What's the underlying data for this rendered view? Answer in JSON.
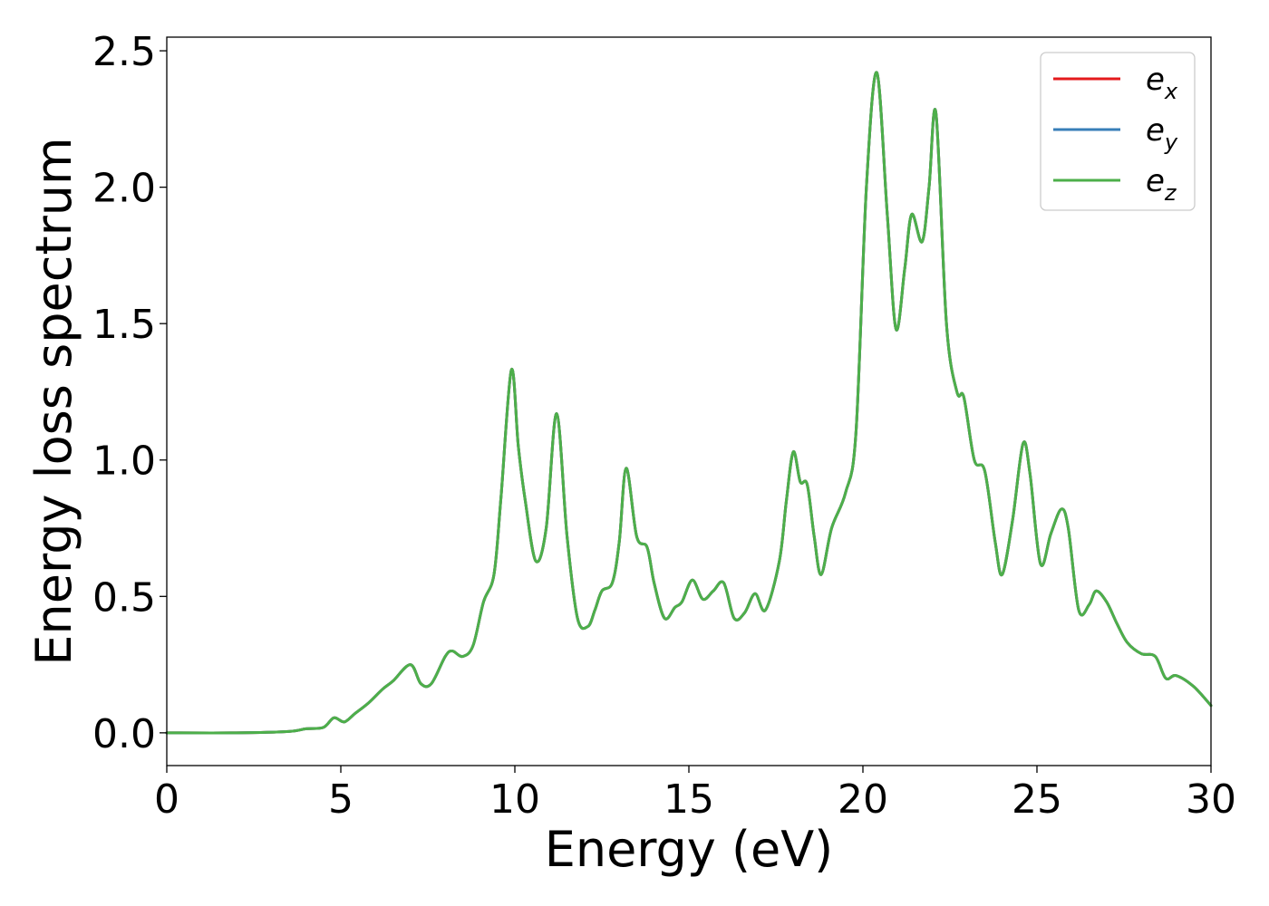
{
  "chart_data": {
    "type": "line",
    "title": "",
    "xlabel": "Energy (eV)",
    "ylabel": "Energy loss spectrum",
    "xlim": [
      0,
      30
    ],
    "ylim": [
      -0.12,
      2.55
    ],
    "xticks": [
      0,
      5,
      10,
      15,
      20,
      25,
      30
    ],
    "yticks": [
      0.0,
      0.5,
      1.0,
      1.5,
      2.0,
      2.5
    ],
    "xtick_labels": [
      "0",
      "5",
      "10",
      "15",
      "20",
      "25",
      "30"
    ],
    "ytick_labels": [
      "0.0",
      "0.5",
      "1.0",
      "1.5",
      "2.0",
      "2.5"
    ],
    "grid": false,
    "legend_position": "top-right",
    "colors": {
      "ex": "#e41a1c",
      "ey": "#377eb8",
      "ez": "#4daf4a"
    },
    "series": [
      {
        "name": "e_x",
        "legend_base": "e",
        "legend_sub": "x",
        "color": "#e41a1c",
        "x": [
          0,
          2,
          3.5,
          4.0,
          4.5,
          4.8,
          5.1,
          5.4,
          5.8,
          6.2,
          6.5,
          7.0,
          7.3,
          7.6,
          8.0,
          8.2,
          8.5,
          8.8,
          9.1,
          9.4,
          9.6,
          9.9,
          10.1,
          10.3,
          10.6,
          10.9,
          11.2,
          11.5,
          11.8,
          12.1,
          12.3,
          12.5,
          12.8,
          13.0,
          13.2,
          13.5,
          13.8,
          14.0,
          14.3,
          14.6,
          14.8,
          15.1,
          15.4,
          15.7,
          16.0,
          16.3,
          16.6,
          16.9,
          17.2,
          17.6,
          17.8,
          18.0,
          18.2,
          18.4,
          18.6,
          18.8,
          19.1,
          19.5,
          19.8,
          20.1,
          20.4,
          20.7,
          20.95,
          21.2,
          21.4,
          21.7,
          21.9,
          22.1,
          22.4,
          22.7,
          22.9,
          23.2,
          23.5,
          23.8,
          24.0,
          24.3,
          24.6,
          24.8,
          25.1,
          25.4,
          25.7,
          25.9,
          26.2,
          26.5,
          26.7,
          27.0,
          27.3,
          27.6,
          28.0,
          28.4,
          28.7,
          29.0,
          29.5,
          30.0
        ],
        "y": [
          0.0,
          0.0,
          0.005,
          0.015,
          0.02,
          0.055,
          0.04,
          0.07,
          0.11,
          0.16,
          0.19,
          0.25,
          0.18,
          0.18,
          0.28,
          0.3,
          0.28,
          0.32,
          0.48,
          0.58,
          0.86,
          1.33,
          1.05,
          0.85,
          0.63,
          0.75,
          1.17,
          0.72,
          0.42,
          0.39,
          0.45,
          0.52,
          0.55,
          0.7,
          0.97,
          0.72,
          0.68,
          0.55,
          0.42,
          0.46,
          0.48,
          0.56,
          0.49,
          0.52,
          0.55,
          0.42,
          0.44,
          0.51,
          0.45,
          0.63,
          0.85,
          1.03,
          0.92,
          0.91,
          0.72,
          0.58,
          0.75,
          0.88,
          1.1,
          2.0,
          2.42,
          1.9,
          1.48,
          1.7,
          1.9,
          1.8,
          2.0,
          2.27,
          1.5,
          1.25,
          1.23,
          1.0,
          0.96,
          0.7,
          0.58,
          0.78,
          1.06,
          0.95,
          0.62,
          0.73,
          0.82,
          0.75,
          0.45,
          0.47,
          0.52,
          0.48,
          0.4,
          0.33,
          0.29,
          0.28,
          0.2,
          0.21,
          0.17,
          0.1
        ]
      },
      {
        "name": "e_y",
        "legend_base": "e",
        "legend_sub": "y",
        "color": "#377eb8",
        "x": [
          0,
          2,
          3.5,
          4.0,
          4.5,
          4.8,
          5.1,
          5.4,
          5.8,
          6.2,
          6.5,
          7.0,
          7.3,
          7.6,
          8.0,
          8.2,
          8.5,
          8.8,
          9.1,
          9.4,
          9.6,
          9.9,
          10.1,
          10.3,
          10.6,
          10.9,
          11.2,
          11.5,
          11.8,
          12.1,
          12.3,
          12.5,
          12.8,
          13.0,
          13.2,
          13.5,
          13.8,
          14.0,
          14.3,
          14.6,
          14.8,
          15.1,
          15.4,
          15.7,
          16.0,
          16.3,
          16.6,
          16.9,
          17.2,
          17.6,
          17.8,
          18.0,
          18.2,
          18.4,
          18.6,
          18.8,
          19.1,
          19.5,
          19.8,
          20.1,
          20.4,
          20.7,
          20.95,
          21.2,
          21.4,
          21.7,
          21.9,
          22.1,
          22.4,
          22.7,
          22.9,
          23.2,
          23.5,
          23.8,
          24.0,
          24.3,
          24.6,
          24.8,
          25.1,
          25.4,
          25.7,
          25.9,
          26.2,
          26.5,
          26.7,
          27.0,
          27.3,
          27.6,
          28.0,
          28.4,
          28.7,
          29.0,
          29.5,
          30.0
        ],
        "y": [
          0.0,
          0.0,
          0.005,
          0.015,
          0.02,
          0.055,
          0.04,
          0.07,
          0.11,
          0.16,
          0.19,
          0.25,
          0.18,
          0.18,
          0.28,
          0.3,
          0.28,
          0.32,
          0.48,
          0.58,
          0.86,
          1.33,
          1.05,
          0.85,
          0.63,
          0.75,
          1.17,
          0.72,
          0.42,
          0.39,
          0.45,
          0.52,
          0.55,
          0.7,
          0.97,
          0.72,
          0.68,
          0.55,
          0.42,
          0.46,
          0.48,
          0.56,
          0.49,
          0.52,
          0.55,
          0.42,
          0.44,
          0.51,
          0.45,
          0.63,
          0.85,
          1.03,
          0.92,
          0.91,
          0.72,
          0.58,
          0.75,
          0.88,
          1.1,
          2.0,
          2.42,
          1.9,
          1.48,
          1.7,
          1.9,
          1.8,
          2.0,
          2.27,
          1.5,
          1.25,
          1.23,
          1.0,
          0.96,
          0.7,
          0.58,
          0.78,
          1.06,
          0.95,
          0.62,
          0.73,
          0.82,
          0.75,
          0.45,
          0.47,
          0.52,
          0.48,
          0.4,
          0.33,
          0.29,
          0.28,
          0.2,
          0.21,
          0.17,
          0.1
        ]
      },
      {
        "name": "e_z",
        "legend_base": "e",
        "legend_sub": "z",
        "color": "#4daf4a",
        "x": [
          0,
          2,
          3.5,
          4.0,
          4.5,
          4.8,
          5.1,
          5.4,
          5.8,
          6.2,
          6.5,
          7.0,
          7.3,
          7.6,
          8.0,
          8.2,
          8.5,
          8.8,
          9.1,
          9.4,
          9.6,
          9.9,
          10.1,
          10.3,
          10.6,
          10.9,
          11.2,
          11.5,
          11.8,
          12.1,
          12.3,
          12.5,
          12.8,
          13.0,
          13.2,
          13.5,
          13.8,
          14.0,
          14.3,
          14.6,
          14.8,
          15.1,
          15.4,
          15.7,
          16.0,
          16.3,
          16.6,
          16.9,
          17.2,
          17.6,
          17.8,
          18.0,
          18.2,
          18.4,
          18.6,
          18.8,
          19.1,
          19.5,
          19.8,
          20.1,
          20.4,
          20.7,
          20.95,
          21.2,
          21.4,
          21.7,
          21.9,
          22.1,
          22.4,
          22.7,
          22.9,
          23.2,
          23.5,
          23.8,
          24.0,
          24.3,
          24.6,
          24.8,
          25.1,
          25.4,
          25.7,
          25.9,
          26.2,
          26.5,
          26.7,
          27.0,
          27.3,
          27.6,
          28.0,
          28.4,
          28.7,
          29.0,
          29.5,
          30.0
        ],
        "y": [
          0.0,
          0.0,
          0.005,
          0.015,
          0.02,
          0.055,
          0.04,
          0.07,
          0.11,
          0.16,
          0.19,
          0.25,
          0.18,
          0.18,
          0.28,
          0.3,
          0.28,
          0.32,
          0.48,
          0.58,
          0.86,
          1.33,
          1.05,
          0.85,
          0.63,
          0.75,
          1.17,
          0.72,
          0.42,
          0.39,
          0.45,
          0.52,
          0.55,
          0.7,
          0.97,
          0.72,
          0.68,
          0.55,
          0.42,
          0.46,
          0.48,
          0.56,
          0.49,
          0.52,
          0.55,
          0.42,
          0.44,
          0.51,
          0.45,
          0.63,
          0.85,
          1.03,
          0.92,
          0.91,
          0.72,
          0.58,
          0.75,
          0.88,
          1.1,
          2.0,
          2.42,
          1.9,
          1.48,
          1.7,
          1.9,
          1.8,
          2.0,
          2.27,
          1.5,
          1.25,
          1.23,
          1.0,
          0.96,
          0.7,
          0.58,
          0.78,
          1.06,
          0.95,
          0.62,
          0.73,
          0.82,
          0.75,
          0.45,
          0.47,
          0.52,
          0.48,
          0.4,
          0.33,
          0.29,
          0.28,
          0.2,
          0.21,
          0.17,
          0.1
        ]
      }
    ]
  }
}
